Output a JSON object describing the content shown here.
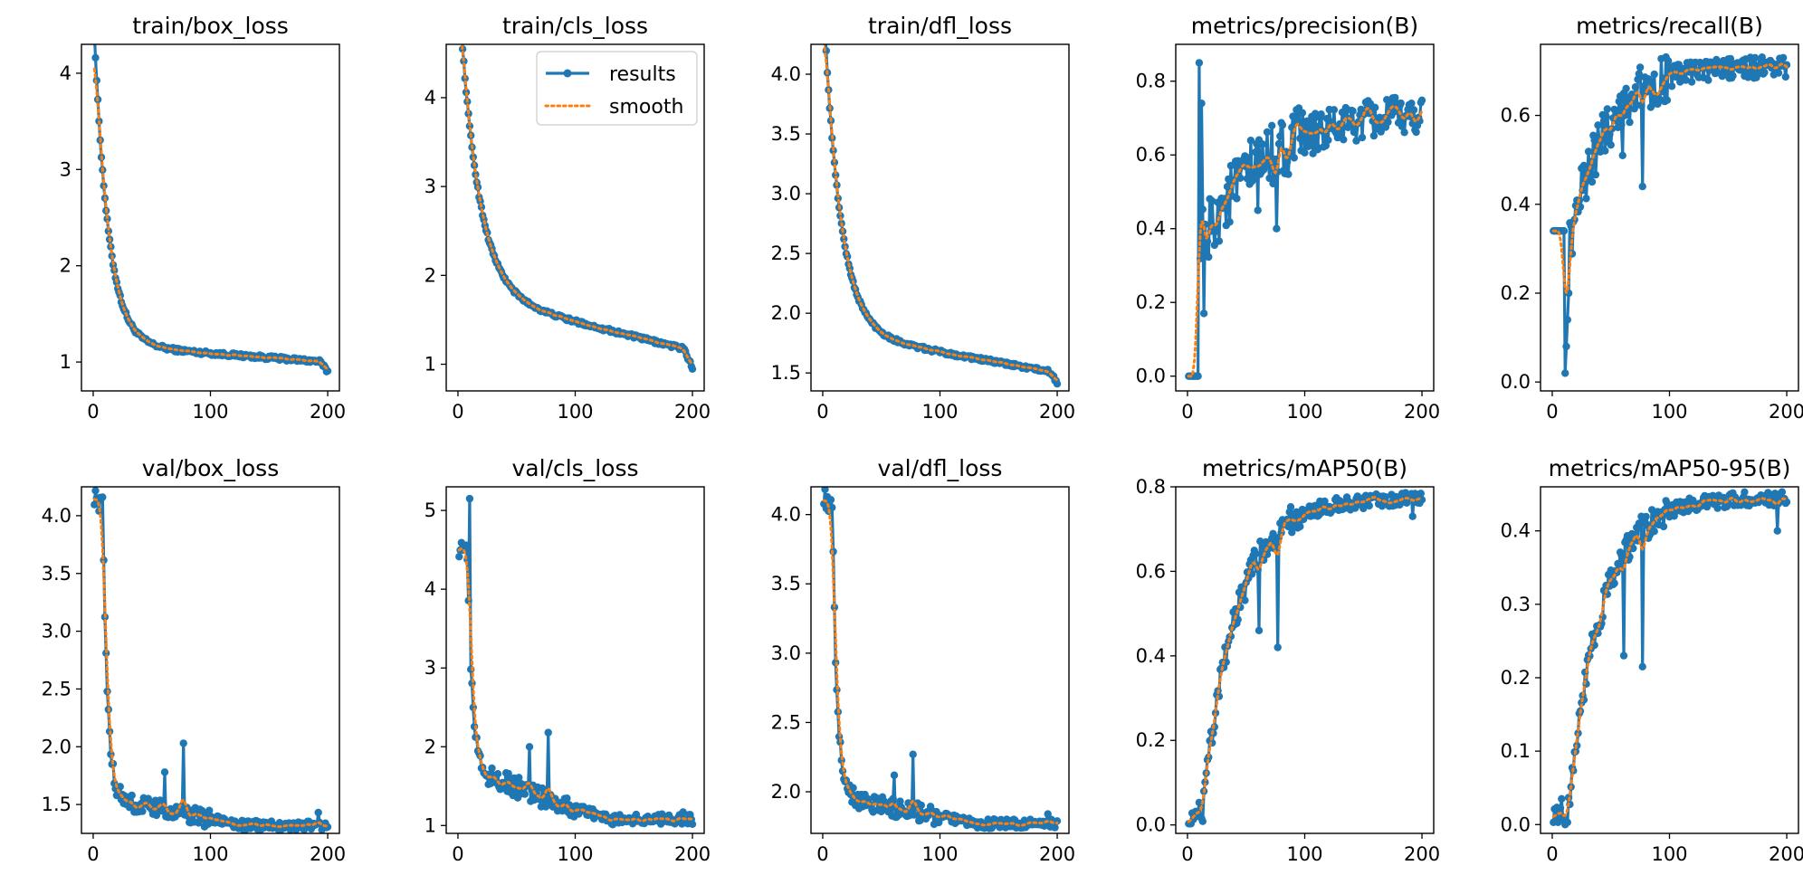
{
  "figure": {
    "colors": {
      "results": "#1f77b4",
      "smooth": "#ff7f0e",
      "axes": "#000000",
      "background": "#ffffff"
    },
    "legend": {
      "entries": [
        "results",
        "smooth"
      ],
      "location": "upper-right of train/cls_loss"
    }
  },
  "chart_data": [
    {
      "type": "line",
      "title": "train/box_loss",
      "xlim": [
        -10,
        210
      ],
      "ylim": [
        0.7,
        4.3
      ],
      "xticks": [
        0,
        100,
        200
      ],
      "xtick_labels": [
        "0",
        "100",
        "200"
      ],
      "yticks": [
        1,
        2,
        3,
        4
      ],
      "ytick_labels": [
        "1",
        "2",
        "3",
        "4"
      ],
      "series": [
        {
          "name": "results",
          "kind": "exp",
          "start": 4.25,
          "end": 1.0,
          "tau": 12,
          "drift": 0.18,
          "noise": 0.02,
          "last_drop": 0.1
        }
      ]
    },
    {
      "type": "line",
      "title": "train/cls_loss",
      "xlim": [
        -10,
        210
      ],
      "ylim": [
        0.7,
        4.6
      ],
      "xticks": [
        0,
        100,
        200
      ],
      "xtick_labels": [
        "0",
        "100",
        "200"
      ],
      "yticks": [
        1,
        2,
        3,
        4
      ],
      "ytick_labels": [
        "1",
        "2",
        "3",
        "4"
      ],
      "legend": [
        "results",
        "smooth"
      ],
      "series": [
        {
          "name": "results",
          "kind": "exp",
          "start": 4.5,
          "end": 1.15,
          "tau": 16,
          "drift": 0.65,
          "noise": 0.02,
          "last_drop": 0.2
        }
      ]
    },
    {
      "type": "line",
      "title": "train/dfl_loss",
      "xlim": [
        -10,
        210
      ],
      "ylim": [
        1.35,
        4.25
      ],
      "xticks": [
        0,
        100,
        200
      ],
      "xtick_labels": [
        "0",
        "100",
        "200"
      ],
      "yticks": [
        1.5,
        2.0,
        2.5,
        3.0,
        3.5,
        4.0
      ],
      "ytick_labels": [
        "1.5",
        "2.0",
        "2.5",
        "3.0",
        "3.5",
        "4.0"
      ],
      "series": [
        {
          "name": "results",
          "kind": "exp",
          "start": 4.2,
          "end": 1.5,
          "tau": 14,
          "drift": 0.35,
          "noise": 0.015,
          "last_drop": 0.08
        }
      ]
    },
    {
      "type": "line",
      "title": "metrics/precision(B)",
      "xlim": [
        -10,
        210
      ],
      "ylim": [
        -0.04,
        0.9
      ],
      "xticks": [
        0,
        100,
        200
      ],
      "xtick_labels": [
        "0",
        "100",
        "200"
      ],
      "yticks": [
        0.0,
        0.2,
        0.4,
        0.6,
        0.8
      ],
      "ytick_labels": [
        "0.0",
        "0.2",
        "0.4",
        "0.6",
        "0.8"
      ],
      "series": [
        {
          "name": "results",
          "kind": "precision",
          "noise": 0.055
        }
      ]
    },
    {
      "type": "line",
      "title": "metrics/recall(B)",
      "xlim": [
        -10,
        210
      ],
      "ylim": [
        -0.02,
        0.76
      ],
      "xticks": [
        0,
        100,
        200
      ],
      "xtick_labels": [
        "0",
        "100",
        "200"
      ],
      "yticks": [
        0.0,
        0.2,
        0.4,
        0.6
      ],
      "ytick_labels": [
        "0.0",
        "0.2",
        "0.4",
        "0.6"
      ],
      "series": [
        {
          "name": "results",
          "kind": "recall",
          "noise": 0.04
        }
      ]
    },
    {
      "type": "line",
      "title": "val/box_loss",
      "xlim": [
        -10,
        210
      ],
      "ylim": [
        1.25,
        4.25
      ],
      "xticks": [
        0,
        100,
        200
      ],
      "xtick_labels": [
        "0",
        "100",
        "200"
      ],
      "yticks": [
        1.5,
        2.0,
        2.5,
        3.0,
        3.5,
        4.0
      ],
      "ytick_labels": [
        "1.5",
        "2.0",
        "2.5",
        "3.0",
        "3.5",
        "4.0"
      ],
      "series": [
        {
          "name": "results",
          "kind": "valloss",
          "start": 4.18,
          "plateau": 1.32,
          "mid": 1.55,
          "noise": 0.08,
          "spikes": [
            [
              61,
              1.78
            ],
            [
              77,
              2.03
            ],
            [
              192,
              1.43
            ]
          ]
        }
      ]
    },
    {
      "type": "line",
      "title": "val/cls_loss",
      "xlim": [
        -10,
        210
      ],
      "ylim": [
        0.9,
        5.3
      ],
      "xticks": [
        0,
        100,
        200
      ],
      "xtick_labels": [
        "0",
        "100",
        "200"
      ],
      "yticks": [
        1,
        2,
        3,
        4,
        5
      ],
      "ytick_labels": [
        "1",
        "2",
        "3",
        "4",
        "5"
      ],
      "series": [
        {
          "name": "results",
          "kind": "valloss",
          "start": 4.55,
          "plateau": 1.08,
          "mid": 1.7,
          "noise": 0.14,
          "spikes": [
            [
              10,
              5.15
            ],
            [
              61,
              2.0
            ],
            [
              77,
              2.18
            ],
            [
              192,
              1.17
            ]
          ]
        }
      ]
    },
    {
      "type": "line",
      "title": "val/dfl_loss",
      "xlim": [
        -10,
        210
      ],
      "ylim": [
        1.7,
        4.2
      ],
      "xticks": [
        0,
        100,
        200
      ],
      "xtick_labels": [
        "0",
        "100",
        "200"
      ],
      "yticks": [
        2.0,
        2.5,
        3.0,
        3.5,
        4.0
      ],
      "ytick_labels": [
        "2.0",
        "2.5",
        "3.0",
        "3.5",
        "4.0"
      ],
      "series": [
        {
          "name": "results",
          "kind": "valloss",
          "start": 4.15,
          "plateau": 1.77,
          "mid": 1.98,
          "noise": 0.07,
          "spikes": [
            [
              61,
              2.12
            ],
            [
              77,
              2.27
            ],
            [
              192,
              1.84
            ]
          ]
        }
      ]
    },
    {
      "type": "line",
      "title": "metrics/mAP50(B)",
      "xlim": [
        -10,
        210
      ],
      "ylim": [
        -0.02,
        0.8
      ],
      "xticks": [
        0,
        100,
        200
      ],
      "xtick_labels": [
        "0",
        "100",
        "200"
      ],
      "yticks": [
        0.0,
        0.2,
        0.4,
        0.6,
        0.8
      ],
      "ytick_labels": [
        "0.0",
        "0.2",
        "0.4",
        "0.6",
        "0.8"
      ],
      "series": [
        {
          "name": "results",
          "kind": "map",
          "max": 0.77,
          "noise": 0.035,
          "dips": [
            [
              61,
              0.46
            ],
            [
              77,
              0.42
            ],
            [
              192,
              0.73
            ]
          ]
        }
      ]
    },
    {
      "type": "line",
      "title": "metrics/mAP50-95(B)",
      "xlim": [
        -10,
        210
      ],
      "ylim": [
        -0.012,
        0.46
      ],
      "xticks": [
        0,
        100,
        200
      ],
      "xtick_labels": [
        "0",
        "100",
        "200"
      ],
      "yticks": [
        0.0,
        0.1,
        0.2,
        0.3,
        0.4
      ],
      "ytick_labels": [
        "0.0",
        "0.1",
        "0.2",
        "0.3",
        "0.4"
      ],
      "series": [
        {
          "name": "results",
          "kind": "map",
          "max": 0.445,
          "noise": 0.02,
          "dips": [
            [
              61,
              0.23
            ],
            [
              77,
              0.215
            ],
            [
              192,
              0.4
            ]
          ]
        }
      ]
    }
  ]
}
